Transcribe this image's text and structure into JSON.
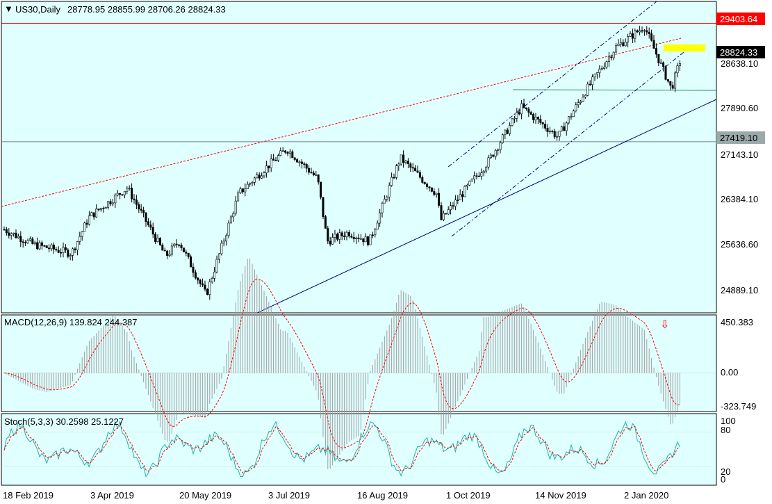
{
  "colors": {
    "background": "#e0ffff",
    "candle": "#000000",
    "resistance": "#ff0000",
    "support_label_bg": "#9aa9aa",
    "trend": "#000080",
    "channel": "#000080",
    "fib_red": "#ff0000",
    "green_line": "#2e8b57",
    "highlight": "#ffff00",
    "macd_hist": "#a0a0a0",
    "macd_signal": "#ff0000",
    "stoch_main": "#20b2aa",
    "stoch_signal": "#ff0000"
  },
  "header": {
    "symbol": "US30,Daily",
    "ohlc": "28778.95 28855.99 28706.26 28824.33"
  },
  "levels": {
    "resistance": "29403.64",
    "current": "28824.33",
    "support": "27419.10"
  },
  "price_axis": [
    "28638.10",
    "27890.60",
    "27143.10",
    "26384.10",
    "25636.60",
    "24889.10"
  ],
  "macd": {
    "label": "MACD(12,26,9) 139.824 244.387",
    "axis": [
      "450.383",
      "0.00",
      "-323.749"
    ],
    "arrow": "⇩"
  },
  "stoch": {
    "label": "Stoch(5,3,3) 30.2598 25.1227",
    "axis": [
      "100",
      "80",
      "20",
      "0"
    ]
  },
  "date_axis": [
    "18 Feb 2019",
    "3 Apr 2019",
    "20 May 2019",
    "3 Jul 2019",
    "16 Aug 2019",
    "1 Oct 2019",
    "14 Nov 2019",
    "2 Jan 2020"
  ],
  "chart_data": {
    "type": "candlestick",
    "title": "US30,Daily",
    "x": [
      "2019-02-18",
      "2019-04-03",
      "2019-05-20",
      "2019-07-03",
      "2019-08-16",
      "2019-10-01",
      "2019-11-14",
      "2020-01-02"
    ],
    "close_path": [
      [
        "2019-02-18",
        25950
      ],
      [
        "2019-03-05",
        25700
      ],
      [
        "2019-03-25",
        25550
      ],
      [
        "2019-04-03",
        26150
      ],
      [
        "2019-04-23",
        26650
      ],
      [
        "2019-05-13",
        25500
      ],
      [
        "2019-05-20",
        25750
      ],
      [
        "2019-06-03",
        24850
      ],
      [
        "2019-06-20",
        26550
      ],
      [
        "2019-07-03",
        26950
      ],
      [
        "2019-07-15",
        27300
      ],
      [
        "2019-07-31",
        26800
      ],
      [
        "2019-08-05",
        25750
      ],
      [
        "2019-08-16",
        25900
      ],
      [
        "2019-08-27",
        25750
      ],
      [
        "2019-09-12",
        27150
      ],
      [
        "2019-10-01",
        26550
      ],
      [
        "2019-10-03",
        26100
      ],
      [
        "2019-10-28",
        27100
      ],
      [
        "2019-11-14",
        28000
      ],
      [
        "2019-12-03",
        27500
      ],
      [
        "2019-12-17",
        28250
      ],
      [
        "2020-01-02",
        29000
      ],
      [
        "2020-01-17",
        29350
      ],
      [
        "2020-01-31",
        28300
      ],
      [
        "2020-02-05",
        28824.33
      ]
    ],
    "price_ylim": [
      24600,
      29700
    ],
    "macd": {
      "ylim": [
        -323.749,
        450.383
      ],
      "last": 139.824,
      "signal_last": 244.387
    },
    "stoch": {
      "ylim": [
        0,
        100
      ],
      "main_last": 30.2598,
      "signal_last": 25.1227
    },
    "grid": false
  }
}
